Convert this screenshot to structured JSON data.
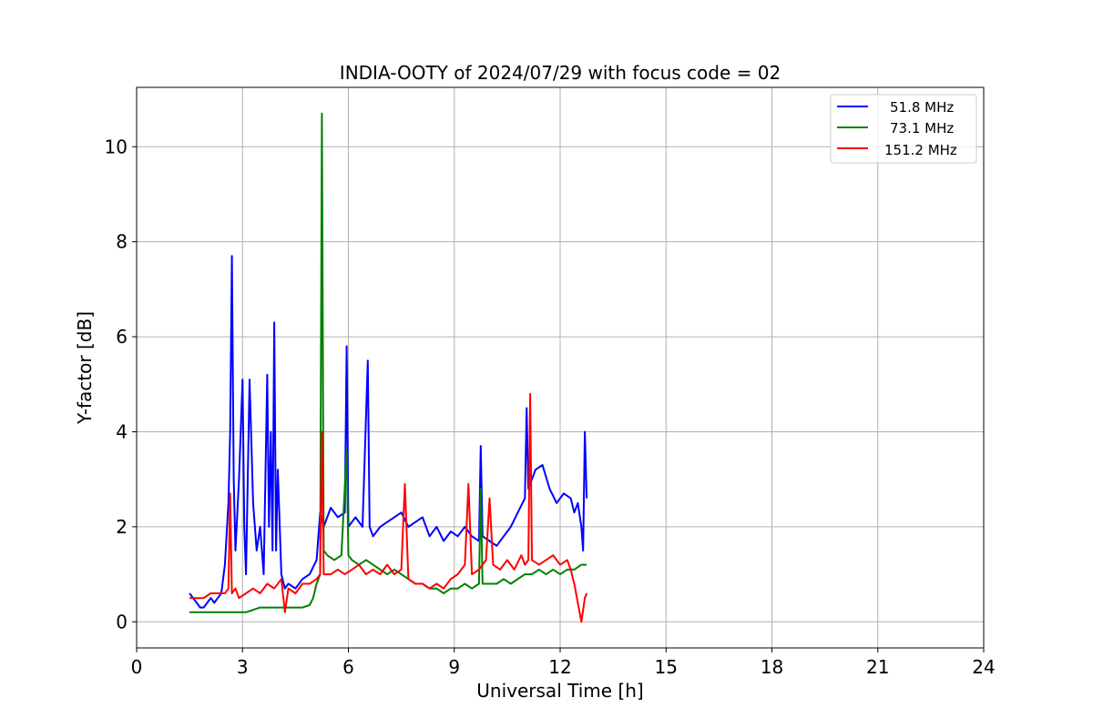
{
  "chart_data": {
    "type": "line",
    "title": "INDIA-OOTY of 2024/07/29 with focus code = 02",
    "xlabel": "Universal Time [h]",
    "ylabel": "Y-factor [dB]",
    "xlim": [
      0,
      24
    ],
    "ylim": [
      -0.55,
      11.25
    ],
    "xticks": [
      0,
      3,
      6,
      9,
      12,
      15,
      18,
      21,
      24
    ],
    "xtick_labels": [
      "0",
      "3",
      "6",
      "9",
      "12",
      "15",
      "18",
      "21",
      "24"
    ],
    "yticks": [
      0,
      2,
      4,
      6,
      8,
      10
    ],
    "ytick_labels": [
      "0",
      "2",
      "4",
      "6",
      "8",
      "10"
    ],
    "grid": true,
    "legend_position": "top-right",
    "series": [
      {
        "name": "51.8 MHz",
        "color": "#0000ff",
        "x": [
          1.5,
          1.6,
          1.7,
          1.8,
          1.9,
          2.0,
          2.1,
          2.2,
          2.3,
          2.4,
          2.5,
          2.6,
          2.65,
          2.7,
          2.75,
          2.8,
          2.9,
          3.0,
          3.05,
          3.1,
          3.2,
          3.3,
          3.4,
          3.5,
          3.6,
          3.7,
          3.75,
          3.8,
          3.85,
          3.9,
          3.95,
          4.0,
          4.1,
          4.2,
          4.3,
          4.5,
          4.7,
          4.9,
          5.1,
          5.2,
          5.3,
          5.5,
          5.7,
          5.9,
          5.95,
          6.0,
          6.2,
          6.4,
          6.55,
          6.6,
          6.7,
          6.9,
          7.1,
          7.3,
          7.5,
          7.7,
          7.9,
          8.1,
          8.3,
          8.5,
          8.7,
          8.9,
          9.1,
          9.3,
          9.5,
          9.7,
          9.75,
          9.8,
          10.0,
          10.2,
          10.4,
          10.6,
          10.8,
          11.0,
          11.05,
          11.1,
          11.3,
          11.5,
          11.7,
          11.9,
          12.1,
          12.3,
          12.4,
          12.5,
          12.6,
          12.65,
          12.7,
          12.75
        ],
        "y": [
          0.6,
          0.5,
          0.4,
          0.3,
          0.3,
          0.4,
          0.5,
          0.4,
          0.5,
          0.6,
          1.2,
          2.5,
          4.0,
          7.7,
          3.0,
          1.5,
          3.0,
          5.1,
          2.0,
          1.0,
          5.1,
          2.5,
          1.5,
          2.0,
          1.0,
          5.2,
          2.0,
          4.0,
          1.5,
          6.3,
          1.5,
          3.2,
          1.0,
          0.7,
          0.8,
          0.7,
          0.9,
          1.0,
          1.3,
          2.3,
          2.0,
          2.4,
          2.2,
          2.3,
          5.8,
          2.0,
          2.2,
          2.0,
          5.5,
          2.0,
          1.8,
          2.0,
          2.1,
          2.2,
          2.3,
          2.0,
          2.1,
          2.2,
          1.8,
          2.0,
          1.7,
          1.9,
          1.8,
          2.0,
          1.8,
          1.7,
          3.7,
          1.8,
          1.7,
          1.6,
          1.8,
          2.0,
          2.3,
          2.6,
          4.5,
          2.8,
          3.2,
          3.3,
          2.8,
          2.5,
          2.7,
          2.6,
          2.3,
          2.5,
          2.0,
          1.5,
          4.0,
          2.6
        ]
      },
      {
        "name": "73.1 MHz",
        "color": "#008000",
        "x": [
          1.5,
          1.7,
          1.9,
          2.1,
          2.3,
          2.5,
          2.7,
          2.9,
          3.1,
          3.3,
          3.5,
          3.7,
          3.9,
          4.1,
          4.3,
          4.5,
          4.7,
          4.9,
          5.0,
          5.1,
          5.2,
          5.25,
          5.3,
          5.4,
          5.6,
          5.8,
          5.95,
          6.0,
          6.1,
          6.3,
          6.5,
          6.7,
          6.9,
          7.1,
          7.3,
          7.5,
          7.7,
          7.9,
          8.1,
          8.3,
          8.5,
          8.7,
          8.9,
          9.1,
          9.3,
          9.5,
          9.7,
          9.75,
          9.8,
          10.0,
          10.2,
          10.4,
          10.6,
          10.8,
          11.0,
          11.2,
          11.4,
          11.6,
          11.8,
          12.0,
          12.2,
          12.4,
          12.6,
          12.75
        ],
        "y": [
          0.2,
          0.2,
          0.2,
          0.2,
          0.2,
          0.2,
          0.2,
          0.2,
          0.2,
          0.25,
          0.3,
          0.3,
          0.3,
          0.3,
          0.3,
          0.3,
          0.3,
          0.35,
          0.5,
          0.8,
          1.0,
          10.7,
          1.5,
          1.4,
          1.3,
          1.4,
          3.6,
          1.4,
          1.3,
          1.2,
          1.3,
          1.2,
          1.1,
          1.0,
          1.1,
          1.0,
          0.9,
          0.8,
          0.8,
          0.7,
          0.7,
          0.6,
          0.7,
          0.7,
          0.8,
          0.7,
          0.8,
          2.8,
          0.8,
          0.8,
          0.8,
          0.9,
          0.8,
          0.9,
          1.0,
          1.0,
          1.1,
          1.0,
          1.1,
          1.0,
          1.1,
          1.1,
          1.2,
          1.2
        ]
      },
      {
        "name": "151.2 MHz",
        "color": "#ff0000",
        "x": [
          1.5,
          1.7,
          1.9,
          2.1,
          2.3,
          2.5,
          2.6,
          2.65,
          2.7,
          2.8,
          2.9,
          3.1,
          3.3,
          3.5,
          3.7,
          3.9,
          4.1,
          4.2,
          4.3,
          4.5,
          4.7,
          4.9,
          5.1,
          5.2,
          5.25,
          5.3,
          5.5,
          5.7,
          5.9,
          6.1,
          6.3,
          6.5,
          6.7,
          6.9,
          7.1,
          7.3,
          7.5,
          7.6,
          7.7,
          7.9,
          8.1,
          8.3,
          8.5,
          8.7,
          8.9,
          9.1,
          9.3,
          9.4,
          9.5,
          9.7,
          9.9,
          10.0,
          10.1,
          10.3,
          10.5,
          10.7,
          10.9,
          11.0,
          11.1,
          11.15,
          11.2,
          11.4,
          11.6,
          11.8,
          12.0,
          12.2,
          12.3,
          12.4,
          12.5,
          12.6,
          12.7,
          12.75
        ],
        "y": [
          0.5,
          0.5,
          0.5,
          0.6,
          0.6,
          0.6,
          0.7,
          2.7,
          0.6,
          0.7,
          0.5,
          0.6,
          0.7,
          0.6,
          0.8,
          0.7,
          0.9,
          0.2,
          0.7,
          0.6,
          0.8,
          0.8,
          0.9,
          1.0,
          4.0,
          1.0,
          1.0,
          1.1,
          1.0,
          1.1,
          1.2,
          1.0,
          1.1,
          1.0,
          1.2,
          1.0,
          1.1,
          2.9,
          0.9,
          0.8,
          0.8,
          0.7,
          0.8,
          0.7,
          0.9,
          1.0,
          1.2,
          2.9,
          1.0,
          1.1,
          1.3,
          2.6,
          1.2,
          1.1,
          1.3,
          1.1,
          1.4,
          1.2,
          1.3,
          4.8,
          1.3,
          1.2,
          1.3,
          1.4,
          1.2,
          1.3,
          1.1,
          0.8,
          0.4,
          0.0,
          0.5,
          0.6
        ]
      }
    ]
  }
}
